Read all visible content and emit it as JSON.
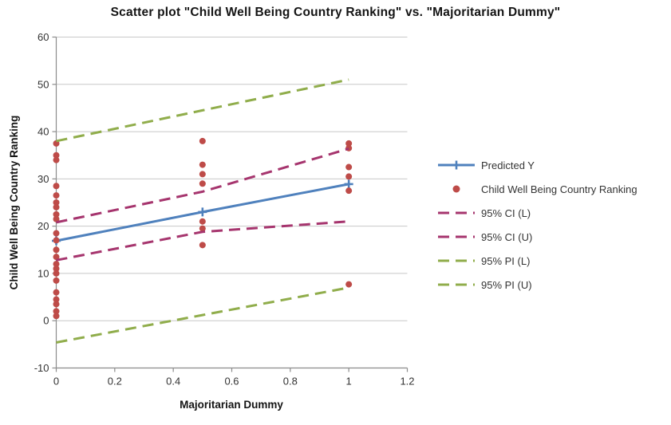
{
  "title": "Scatter plot \"Child Well Being Country Ranking\" vs. \"Majoritarian Dummy\"",
  "colors": {
    "predicted_line": "#4F81BD",
    "scatter_dot": "#BE4B48",
    "ci_line": "#A6356E",
    "pi_line": "#90AD4B",
    "gridline": "#C8C8C8",
    "axis_line": "#8C8C8C",
    "text": "#333333"
  },
  "chart_data": {
    "type": "scatter",
    "title": "Scatter plot \"Child Well Being Country Ranking\" vs. \"Majoritarian Dummy\"",
    "xlabel": "Majoritarian Dummy",
    "ylabel": "Child Well Being Country Ranking",
    "xlim": [
      0,
      1.2
    ],
    "ylim": [
      -10,
      60
    ],
    "x_tick_values": [
      0,
      0.2,
      0.4,
      0.6,
      0.8,
      1,
      1.2
    ],
    "x_tick_labels": [
      "0",
      "0.2",
      "0.4",
      "0.6",
      "0.8",
      "1",
      "1.2"
    ],
    "y_tick_values": [
      -10,
      0,
      10,
      20,
      30,
      40,
      50,
      60
    ],
    "y_tick_labels": [
      "-10",
      "0",
      "10",
      "20",
      "30",
      "40",
      "50",
      "60"
    ],
    "grid": "horizontal-only",
    "legend_position": "right-middle",
    "series": [
      {
        "name": "Predicted Y",
        "kind": "line",
        "line": "solid",
        "marker": "plus",
        "color": "#4F81BD",
        "x": [
          0,
          0.5,
          1
        ],
        "y": [
          16.9,
          23.0,
          28.9
        ]
      },
      {
        "name": "Child Well Being Country Ranking",
        "kind": "scatter",
        "marker": "circle",
        "color": "#BE4B48",
        "groups": [
          {
            "x": 0,
            "y": [
              37.5,
              35,
              34,
              28.5,
              26.5,
              25,
              24,
              22.5,
              21.5,
              18.5,
              17,
              15,
              13.5,
              12,
              11,
              10,
              8.5,
              6,
              4.5,
              3.5,
              2,
              1
            ]
          },
          {
            "x": 0.5,
            "y": [
              38,
              33,
              31,
              29,
              21,
              19.5,
              16
            ]
          },
          {
            "x": 1,
            "y": [
              37.5,
              36.5,
              32.5,
              30.5,
              27.5,
              7.7
            ]
          }
        ]
      },
      {
        "name": "95% CI (L)",
        "kind": "line",
        "line": "dashed",
        "color": "#A6356E",
        "x": [
          0,
          0.5,
          1
        ],
        "y": [
          12.8,
          18.8,
          21
        ]
      },
      {
        "name": "95% CI (U)",
        "kind": "line",
        "line": "dashed",
        "color": "#A6356E",
        "x": [
          0,
          0.5,
          1
        ],
        "y": [
          20.8,
          27.3,
          36.4
        ]
      },
      {
        "name": "95% PI (L)",
        "kind": "line",
        "line": "dashed",
        "color": "#90AD4B",
        "x": [
          0,
          0.5,
          1
        ],
        "y": [
          -4.6,
          1.2,
          7
        ]
      },
      {
        "name": "95% PI (U)",
        "kind": "line",
        "line": "dashed",
        "color": "#90AD4B",
        "x": [
          0,
          0.5,
          1
        ],
        "y": [
          38,
          44.5,
          51
        ]
      }
    ]
  }
}
